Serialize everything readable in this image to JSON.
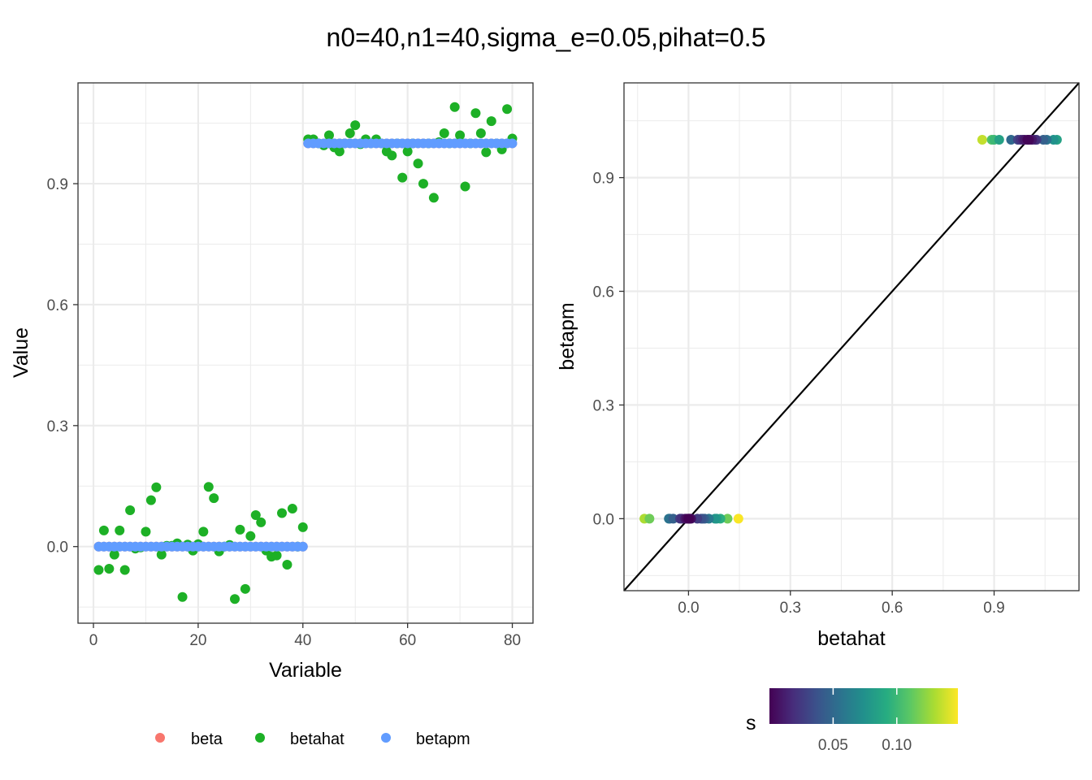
{
  "title": "n0=40,n1=40,sigma_e=0.05,pihat=0.5",
  "chart_data": [
    {
      "type": "scatter",
      "panel": "left",
      "xlabel": "Variable",
      "ylabel": "Value",
      "xlim": [
        -2.95,
        83.95
      ],
      "ylim": [
        -0.19,
        1.15
      ],
      "xticks": [
        0,
        20,
        40,
        60,
        80
      ],
      "xtick_labels": [
        "0",
        "20",
        "40",
        "60",
        "80"
      ],
      "yticks": [
        0.0,
        0.3,
        0.6,
        0.9
      ],
      "ytick_labels": [
        "0.0",
        "0.3",
        "0.6",
        "0.9"
      ],
      "grid": true,
      "legend": {
        "position": "bottom",
        "entries": [
          {
            "label": "beta",
            "color": "#F8766D"
          },
          {
            "label": "betahat",
            "color": "#1DB026"
          },
          {
            "label": "betapm",
            "color": "#619CFF"
          }
        ]
      },
      "series": [
        {
          "name": "beta",
          "color": "#F8766D",
          "x": [
            1,
            2,
            3,
            4,
            5,
            6,
            7,
            8,
            9,
            10,
            11,
            12,
            13,
            14,
            15,
            16,
            17,
            18,
            19,
            20,
            21,
            22,
            23,
            24,
            25,
            26,
            27,
            28,
            29,
            30,
            31,
            32,
            33,
            34,
            35,
            36,
            37,
            38,
            39,
            40,
            41,
            42,
            43,
            44,
            45,
            46,
            47,
            48,
            49,
            50,
            51,
            52,
            53,
            54,
            55,
            56,
            57,
            58,
            59,
            60,
            61,
            62,
            63,
            64,
            65,
            66,
            67,
            68,
            69,
            70,
            71,
            72,
            73,
            74,
            75,
            76,
            77,
            78,
            79,
            80
          ],
          "y": [
            0,
            0,
            0,
            0,
            0,
            0,
            0,
            0,
            0,
            0,
            0,
            0,
            0,
            0,
            0,
            0,
            0,
            0,
            0,
            0,
            0,
            0,
            0,
            0,
            0,
            0,
            0,
            0,
            0,
            0,
            0,
            0,
            0,
            0,
            0,
            0,
            0,
            0,
            0,
            0,
            1,
            1,
            1,
            1,
            1,
            1,
            1,
            1,
            1,
            1,
            1,
            1,
            1,
            1,
            1,
            1,
            1,
            1,
            1,
            1,
            1,
            1,
            1,
            1,
            1,
            1,
            1,
            1,
            1,
            1,
            1,
            1,
            1,
            1,
            1,
            1,
            1,
            1,
            1,
            1
          ]
        },
        {
          "name": "betahat",
          "color": "#1DB026",
          "x": [
            1,
            2,
            3,
            4,
            5,
            6,
            7,
            8,
            9,
            10,
            11,
            12,
            13,
            14,
            15,
            16,
            17,
            18,
            19,
            20,
            21,
            22,
            23,
            24,
            25,
            26,
            27,
            28,
            29,
            30,
            31,
            32,
            33,
            34,
            35,
            36,
            37,
            38,
            39,
            40,
            41,
            42,
            43,
            44,
            45,
            46,
            47,
            48,
            49,
            50,
            51,
            52,
            53,
            54,
            55,
            56,
            57,
            58,
            59,
            60,
            61,
            62,
            63,
            64,
            65,
            66,
            67,
            68,
            69,
            70,
            71,
            72,
            73,
            74,
            75,
            76,
            77,
            78,
            79,
            80
          ],
          "y": [
            -0.058,
            0.04,
            -0.055,
            -0.02,
            0.04,
            -0.058,
            0.09,
            -0.005,
            -0.002,
            0.037,
            0.115,
            0.147,
            -0.02,
            0.002,
            0.002,
            0.008,
            -0.125,
            0.005,
            -0.01,
            0.006,
            0.037,
            0.148,
            0.12,
            -0.012,
            0.0,
            0.004,
            -0.13,
            0.042,
            -0.105,
            0.026,
            0.078,
            0.06,
            -0.01,
            -0.025,
            -0.022,
            0.083,
            -0.045,
            0.094,
            0.0,
            0.048,
            1.01,
            1.01,
            1.0,
            0.995,
            1.02,
            0.99,
            0.98,
            1.0,
            1.025,
            1.045,
            0.998,
            1.01,
            1.0,
            1.01,
            1.0,
            0.98,
            0.97,
            1.0,
            0.915,
            0.98,
            1.0,
            0.95,
            0.9,
            1.0,
            0.865,
            1.003,
            1.025,
            1.0,
            1.09,
            1.02,
            0.893,
            1.0,
            1.075,
            1.025,
            0.978,
            1.055,
            1.0,
            0.985,
            1.085,
            1.012
          ]
        },
        {
          "name": "betapm",
          "color": "#619CFF",
          "x": [
            1,
            2,
            3,
            4,
            5,
            6,
            7,
            8,
            9,
            10,
            11,
            12,
            13,
            14,
            15,
            16,
            17,
            18,
            19,
            20,
            21,
            22,
            23,
            24,
            25,
            26,
            27,
            28,
            29,
            30,
            31,
            32,
            33,
            34,
            35,
            36,
            37,
            38,
            39,
            40,
            41,
            42,
            43,
            44,
            45,
            46,
            47,
            48,
            49,
            50,
            51,
            52,
            53,
            54,
            55,
            56,
            57,
            58,
            59,
            60,
            61,
            62,
            63,
            64,
            65,
            66,
            67,
            68,
            69,
            70,
            71,
            72,
            73,
            74,
            75,
            76,
            77,
            78,
            79,
            80
          ],
          "y": [
            0,
            0,
            0,
            0,
            0,
            0,
            0,
            0,
            0,
            0,
            0,
            0,
            0,
            0,
            0,
            0,
            0,
            0,
            0,
            0,
            0,
            0,
            0,
            0,
            0,
            0,
            0,
            0,
            0,
            0,
            0,
            0,
            0,
            0,
            0,
            0,
            0,
            0,
            0,
            0,
            1,
            1,
            1,
            1,
            1,
            1,
            1,
            1,
            1,
            1,
            1,
            1,
            1,
            1,
            1,
            1,
            1,
            1,
            1,
            1,
            1,
            1,
            1,
            1,
            1,
            1,
            1,
            1,
            1,
            1,
            1,
            1,
            1,
            1,
            1,
            1,
            1,
            1,
            1,
            1
          ]
        }
      ]
    },
    {
      "type": "scatter",
      "panel": "right",
      "xlabel": "betahat",
      "ylabel": "betapm",
      "xlim": [
        -0.19,
        1.15
      ],
      "ylim": [
        -0.19,
        1.15
      ],
      "xticks": [
        0.0,
        0.3,
        0.6,
        0.9
      ],
      "xtick_labels": [
        "0.0",
        "0.3",
        "0.6",
        "0.9"
      ],
      "yticks": [
        0.0,
        0.3,
        0.6,
        0.9
      ],
      "ytick_labels": [
        "0.0",
        "0.3",
        "0.6",
        "0.9"
      ],
      "grid": true,
      "reference_line": {
        "intercept": 0,
        "slope": 1,
        "color": "#000000"
      },
      "color_scale": {
        "name": "s",
        "palette": "viridis",
        "limits": [
          0.0,
          0.148
        ],
        "breaks": [
          0.05,
          0.1
        ],
        "break_labels": [
          "0.05",
          "0.10"
        ],
        "stops": [
          "#440154",
          "#472D7B",
          "#3B528B",
          "#2C728E",
          "#21908C",
          "#27AD81",
          "#5DC863",
          "#AADC32",
          "#FDE725"
        ]
      },
      "points": [
        {
          "x": -0.13,
          "y": 0,
          "s": 0.13
        },
        {
          "x": -0.115,
          "y": 0,
          "s": 0.115
        },
        {
          "x": -0.058,
          "y": 0,
          "s": 0.058
        },
        {
          "x": -0.055,
          "y": 0,
          "s": 0.055
        },
        {
          "x": -0.045,
          "y": 0,
          "s": 0.045
        },
        {
          "x": -0.025,
          "y": 0,
          "s": 0.025
        },
        {
          "x": -0.02,
          "y": 0,
          "s": 0.02
        },
        {
          "x": -0.01,
          "y": 0,
          "s": 0.01
        },
        {
          "x": -0.005,
          "y": 0,
          "s": 0.005
        },
        {
          "x": 0.0,
          "y": 0,
          "s": 0.0
        },
        {
          "x": 0.002,
          "y": 0,
          "s": 0.002
        },
        {
          "x": 0.005,
          "y": 0,
          "s": 0.005
        },
        {
          "x": 0.008,
          "y": 0,
          "s": 0.008
        },
        {
          "x": 0.026,
          "y": 0,
          "s": 0.026
        },
        {
          "x": 0.037,
          "y": 0,
          "s": 0.037
        },
        {
          "x": 0.042,
          "y": 0,
          "s": 0.042
        },
        {
          "x": 0.048,
          "y": 0,
          "s": 0.048
        },
        {
          "x": 0.06,
          "y": 0,
          "s": 0.06
        },
        {
          "x": 0.078,
          "y": 0,
          "s": 0.078
        },
        {
          "x": 0.083,
          "y": 0,
          "s": 0.083
        },
        {
          "x": 0.094,
          "y": 0,
          "s": 0.094
        },
        {
          "x": 0.115,
          "y": 0,
          "s": 0.115
        },
        {
          "x": 0.147,
          "y": 0,
          "s": 0.147
        },
        {
          "x": 0.865,
          "y": 1,
          "s": 0.135
        },
        {
          "x": 0.893,
          "y": 1,
          "s": 0.107
        },
        {
          "x": 0.9,
          "y": 1,
          "s": 0.1
        },
        {
          "x": 0.915,
          "y": 1,
          "s": 0.085
        },
        {
          "x": 0.95,
          "y": 1,
          "s": 0.05
        },
        {
          "x": 0.97,
          "y": 1,
          "s": 0.03
        },
        {
          "x": 0.978,
          "y": 1,
          "s": 0.022
        },
        {
          "x": 0.985,
          "y": 1,
          "s": 0.015
        },
        {
          "x": 0.99,
          "y": 1,
          "s": 0.01
        },
        {
          "x": 0.998,
          "y": 1,
          "s": 0.002
        },
        {
          "x": 1.003,
          "y": 1,
          "s": 0.003
        },
        {
          "x": 1.01,
          "y": 1,
          "s": 0.01
        },
        {
          "x": 1.012,
          "y": 1,
          "s": 0.012
        },
        {
          "x": 1.02,
          "y": 1,
          "s": 0.02
        },
        {
          "x": 1.025,
          "y": 1,
          "s": 0.025
        },
        {
          "x": 1.045,
          "y": 1,
          "s": 0.045
        },
        {
          "x": 1.055,
          "y": 1,
          "s": 0.055
        },
        {
          "x": 1.075,
          "y": 1,
          "s": 0.075
        },
        {
          "x": 1.085,
          "y": 1,
          "s": 0.085
        }
      ]
    }
  ]
}
